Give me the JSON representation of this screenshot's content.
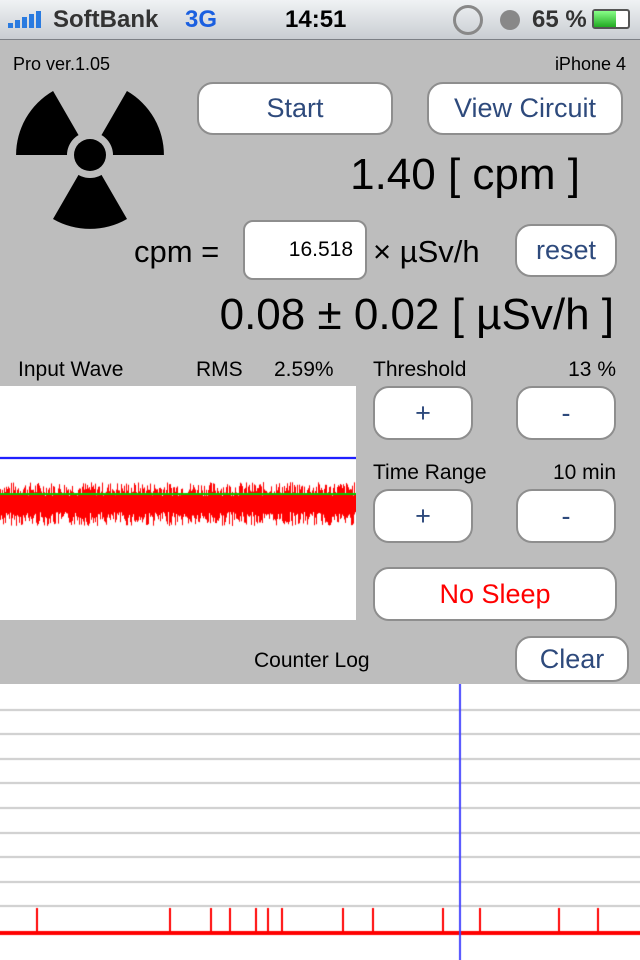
{
  "status_bar": {
    "carrier": "SoftBank",
    "network": "3G",
    "time": "14:51",
    "battery": "65 %",
    "icons": [
      "signal-bars-icon",
      "rotation-lock-icon",
      "alarm-clock-icon",
      "battery-icon"
    ]
  },
  "header": {
    "version": "Pro ver.1.05",
    "device": "iPhone 4"
  },
  "controls": {
    "start": "Start",
    "view_circuit": "View Circuit",
    "cpm_reading": "1.40 [ cpm ]",
    "cpm_label": "cpm =",
    "factor_value": "16.518",
    "factor_unit": "× µSv/h",
    "reset": "reset",
    "dose": "0.08 ± 0.02 [ µSv/h ]"
  },
  "wave": {
    "title": "Input Wave",
    "rms_label": "RMS",
    "rms_value": "2.59%"
  },
  "threshold": {
    "label": "Threshold",
    "value": "13 %",
    "plus": "+",
    "minus": "-"
  },
  "time_range": {
    "label": "Time Range",
    "value": "10 min",
    "plus": "+",
    "minus": "-"
  },
  "no_sleep": "No Sleep",
  "counter_log": {
    "title": "Counter Log",
    "clear": "Clear"
  },
  "colors": {
    "accent_text": "#2e4a7c",
    "alert": "#ff0000",
    "threshold_line": "#0000ff",
    "baseline": "#00cc00"
  }
}
